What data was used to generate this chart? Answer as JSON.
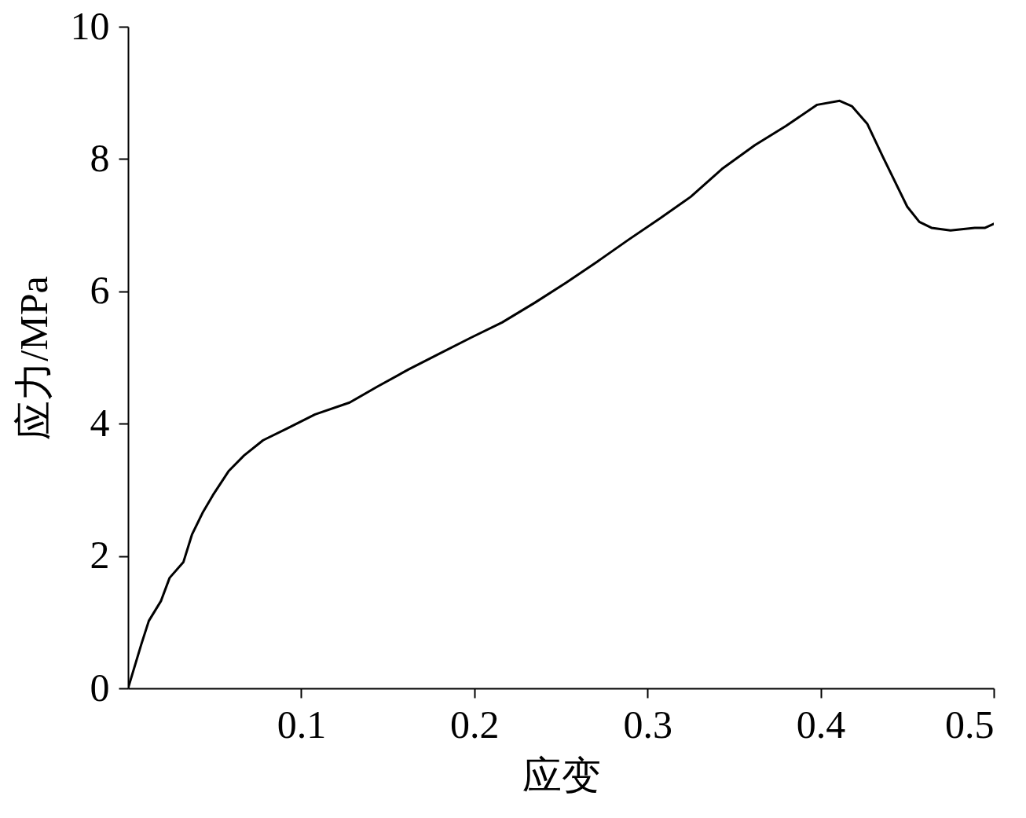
{
  "chart_data": {
    "type": "line",
    "xlabel": "应变",
    "ylabel": "应力/MPa",
    "xlim": [
      0,
      0.5
    ],
    "ylim": [
      0,
      10
    ],
    "xticks": [
      0.1,
      0.2,
      0.3,
      0.4,
      0.5
    ],
    "yticks": [
      0,
      2,
      4,
      6,
      8,
      10
    ],
    "grid": false,
    "line_style": "solid",
    "marker": "none",
    "series": [
      {
        "color": "#000000",
        "x": [
          0,
          0.0077,
          0.012,
          0.019,
          0.024,
          0.032,
          0.037,
          0.043,
          0.049,
          0.058,
          0.067,
          0.078,
          0.092,
          0.108,
          0.128,
          0.144,
          0.162,
          0.18,
          0.198,
          0.216,
          0.235,
          0.253,
          0.271,
          0.289,
          0.307,
          0.325,
          0.343,
          0.362,
          0.38,
          0.398,
          0.411,
          0.418,
          0.427,
          0.436,
          0.45,
          0.457,
          0.464,
          0.475,
          0.489,
          0.495,
          0.5
        ],
        "values": [
          0,
          0.67,
          1.02,
          1.32,
          1.67,
          1.91,
          2.33,
          2.65,
          2.92,
          3.28,
          3.52,
          3.75,
          3.93,
          4.14,
          4.32,
          4.56,
          4.82,
          5.06,
          5.3,
          5.53,
          5.83,
          6.13,
          6.45,
          6.78,
          7.1,
          7.43,
          7.85,
          8.21,
          8.5,
          8.82,
          8.88,
          8.8,
          8.53,
          8.03,
          7.28,
          7.05,
          6.96,
          6.92,
          6.96,
          6.96,
          7.02
        ]
      }
    ]
  }
}
